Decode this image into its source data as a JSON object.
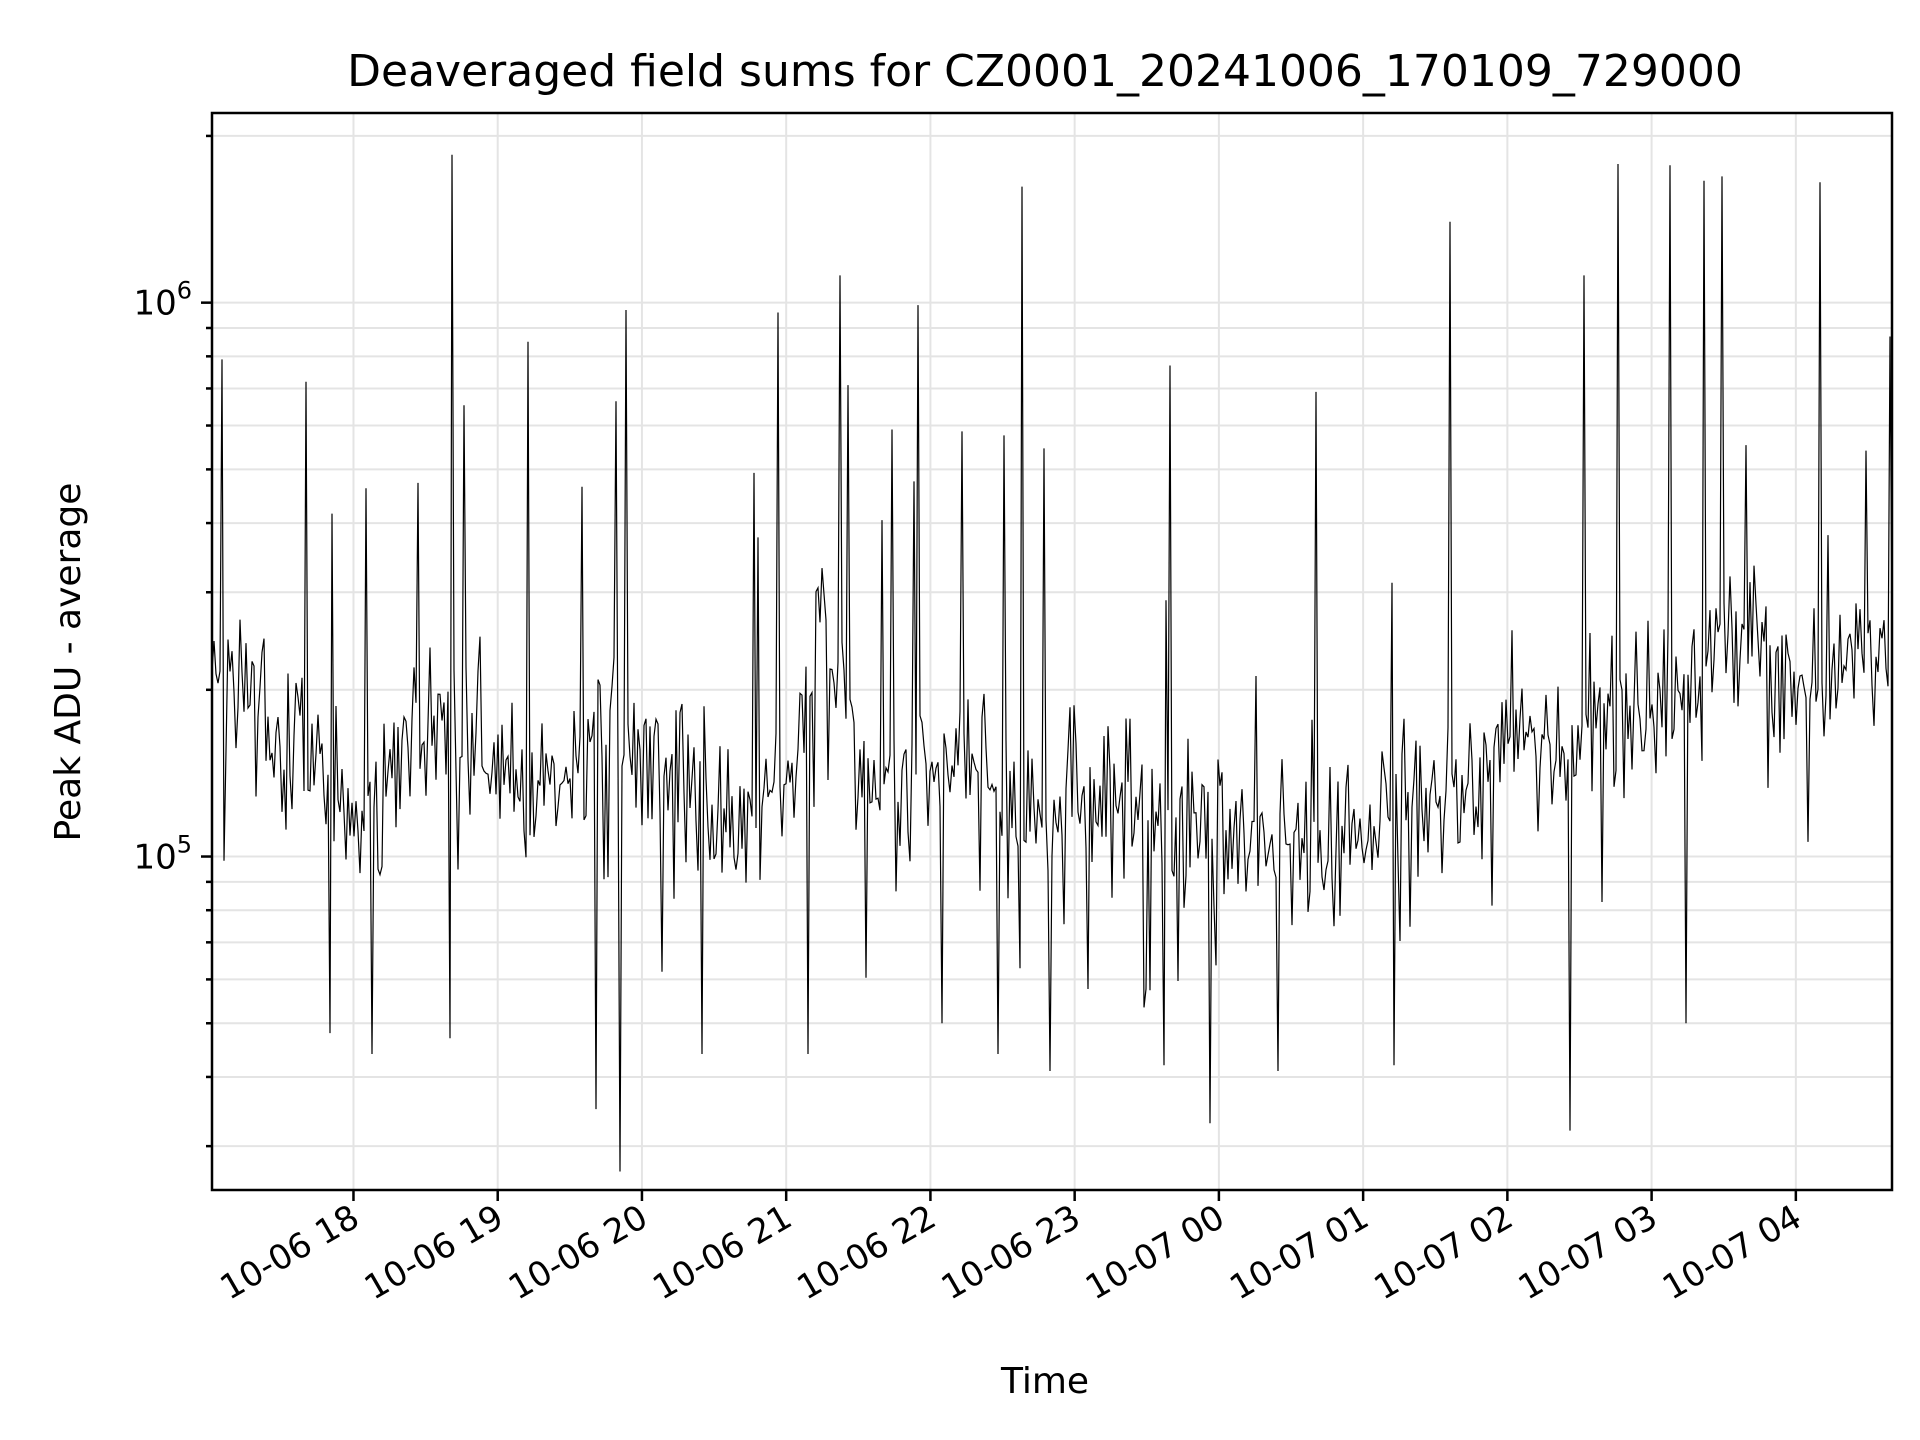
{
  "chart_data": {
    "type": "line",
    "title": "Deaveraged field sums for CZ0001_20241006_170109_729000",
    "xlabel": "Time",
    "ylabel": "Peak ADU - average",
    "yscale": "log",
    "grid": true,
    "line_color": "#000000",
    "grid_color": "#e4e4e4",
    "xlim": [
      "2024-10-06T17:01:09",
      "2024-10-07T04:40:00"
    ],
    "ylim": [
      25000,
      2200000
    ],
    "xticks": [
      {
        "value": "2024-10-06T18:00",
        "label": "10-06 18"
      },
      {
        "value": "2024-10-06T19:00",
        "label": "10-06 19"
      },
      {
        "value": "2024-10-06T20:00",
        "label": "10-06 20"
      },
      {
        "value": "2024-10-06T21:00",
        "label": "10-06 21"
      },
      {
        "value": "2024-10-06T22:00",
        "label": "10-06 22"
      },
      {
        "value": "2024-10-06T23:00",
        "label": "10-06 23"
      },
      {
        "value": "2024-10-07T00:00",
        "label": "10-07 00"
      },
      {
        "value": "2024-10-07T01:00",
        "label": "10-07 01"
      },
      {
        "value": "2024-10-07T02:00",
        "label": "10-07 02"
      },
      {
        "value": "2024-10-07T03:00",
        "label": "10-07 03"
      },
      {
        "value": "2024-10-07T04:00",
        "label": "10-07 04"
      }
    ],
    "yticks": [
      {
        "value": 100000,
        "base": "10",
        "exp": "5"
      },
      {
        "value": 1000000,
        "base": "10",
        "exp": "6"
      }
    ],
    "series": [
      {
        "x": [
          "2024-10-06T17:01",
          "2024-10-06T17:15",
          "2024-10-06T17:30",
          "2024-10-06T17:45",
          "2024-10-06T18:00",
          "2024-10-06T18:15",
          "2024-10-06T18:30",
          "2024-10-06T18:45",
          "2024-10-06T19:00",
          "2024-10-06T19:15",
          "2024-10-06T19:30",
          "2024-10-06T19:45",
          "2024-10-06T20:00",
          "2024-10-06T20:15",
          "2024-10-06T20:30",
          "2024-10-06T20:45",
          "2024-10-06T21:00",
          "2024-10-06T21:15",
          "2024-10-06T21:30",
          "2024-10-06T21:45",
          "2024-10-06T22:00",
          "2024-10-06T22:15",
          "2024-10-06T22:30",
          "2024-10-06T22:45",
          "2024-10-06T23:00",
          "2024-10-06T23:15",
          "2024-10-06T23:30",
          "2024-10-06T23:45",
          "2024-10-07T00:00",
          "2024-10-07T00:15",
          "2024-10-07T00:30",
          "2024-10-07T00:45",
          "2024-10-07T01:00",
          "2024-10-07T01:15",
          "2024-10-07T01:30",
          "2024-10-07T01:45",
          "2024-10-07T02:00",
          "2024-10-07T02:15",
          "2024-10-07T02:30",
          "2024-10-07T02:45",
          "2024-10-07T03:00",
          "2024-10-07T03:15",
          "2024-10-07T03:30",
          "2024-10-07T03:45",
          "2024-10-07T04:00",
          "2024-10-07T04:15",
          "2024-10-07T04:38"
        ],
        "y": [
          200000,
          190000,
          160000,
          150000,
          125000,
          140000,
          160000,
          170000,
          150000,
          130000,
          145000,
          170000,
          155000,
          130000,
          120000,
          125000,
          130000,
          260000,
          140000,
          135000,
          140000,
          175000,
          130000,
          125000,
          120000,
          125000,
          120000,
          115000,
          115000,
          110000,
          105000,
          110000,
          115000,
          125000,
          120000,
          130000,
          165000,
          155000,
          170000,
          185000,
          175000,
          205000,
          225000,
          250000,
          205000,
          235000,
          230000
        ],
        "spikes": [
          {
            "x": "2024-10-06T17:40",
            "y": 720000
          },
          {
            "x": "2024-10-06T18:41",
            "y": 1850000
          },
          {
            "x": "2024-10-06T19:13",
            "y": 850000
          },
          {
            "x": "2024-10-06T19:53",
            "y": 970000
          },
          {
            "x": "2024-10-06T20:57",
            "y": 960000
          },
          {
            "x": "2024-10-06T21:22",
            "y": 1120000
          },
          {
            "x": "2024-10-06T21:55",
            "y": 990000
          },
          {
            "x": "2024-10-06T22:38",
            "y": 1620000
          },
          {
            "x": "2024-10-06T23:40",
            "y": 770000
          },
          {
            "x": "2024-10-07T00:40",
            "y": 690000
          },
          {
            "x": "2024-10-07T01:36",
            "y": 1400000
          },
          {
            "x": "2024-10-07T02:32",
            "y": 1120000
          },
          {
            "x": "2024-10-07T02:46",
            "y": 1780000
          },
          {
            "x": "2024-10-07T03:08",
            "y": 1770000
          },
          {
            "x": "2024-10-07T03:22",
            "y": 1660000
          },
          {
            "x": "2024-10-07T03:29",
            "y": 1690000
          },
          {
            "x": "2024-10-07T04:10",
            "y": 1650000
          }
        ],
        "dips": [
          {
            "x": "2024-10-06T17:50",
            "y": 48000
          },
          {
            "x": "2024-10-06T18:08",
            "y": 44000
          },
          {
            "x": "2024-10-06T18:40",
            "y": 47000
          },
          {
            "x": "2024-10-06T19:41",
            "y": 35000
          },
          {
            "x": "2024-10-06T19:51",
            "y": 27000
          },
          {
            "x": "2024-10-06T20:25",
            "y": 44000
          },
          {
            "x": "2024-10-06T21:09",
            "y": 44000
          },
          {
            "x": "2024-10-06T22:05",
            "y": 50000
          },
          {
            "x": "2024-10-06T22:28",
            "y": 44000
          },
          {
            "x": "2024-10-06T22:50",
            "y": 41000
          },
          {
            "x": "2024-10-06T23:37",
            "y": 42000
          },
          {
            "x": "2024-10-06T23:56",
            "y": 33000
          },
          {
            "x": "2024-10-07T00:25",
            "y": 41000
          },
          {
            "x": "2024-10-07T01:13",
            "y": 42000
          },
          {
            "x": "2024-10-07T02:26",
            "y": 32000
          },
          {
            "x": "2024-10-07T03:14",
            "y": 50000
          }
        ]
      }
    ]
  }
}
